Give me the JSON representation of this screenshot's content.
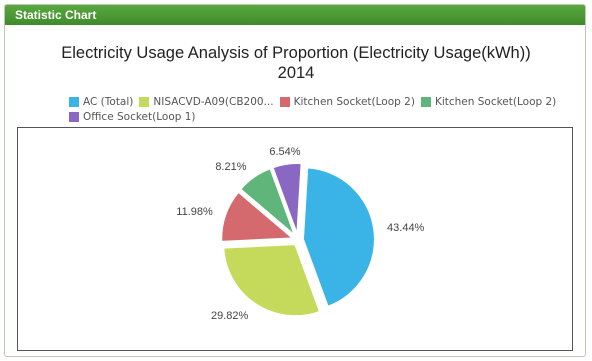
{
  "panel": {
    "title": "Statistic Chart"
  },
  "chart_data": {
    "type": "pie",
    "title_lines": [
      "Electricity Usage Analysis of Proportion (Electricity Usage(kWh))",
      "2014"
    ],
    "legend_position": "top",
    "series": [
      {
        "name": "AC (Total)",
        "value": 43.44,
        "label": "43.44%",
        "color": "#3ab4e6"
      },
      {
        "name": "NISACVD-A09(CB200...",
        "value": 29.82,
        "label": "29.82%",
        "color": "#c5d95a"
      },
      {
        "name": "Kitchen Socket(Loop 2)",
        "value": 11.98,
        "label": "11.98%",
        "color": "#d46a6e"
      },
      {
        "name": "Kitchen Socket(Loop 2)",
        "value": 8.21,
        "label": "8.21%",
        "color": "#5fb57a"
      },
      {
        "name": "Office Socket(Loop 1)",
        "value": 6.54,
        "label": "6.54%",
        "color": "#8a67c3"
      }
    ]
  }
}
